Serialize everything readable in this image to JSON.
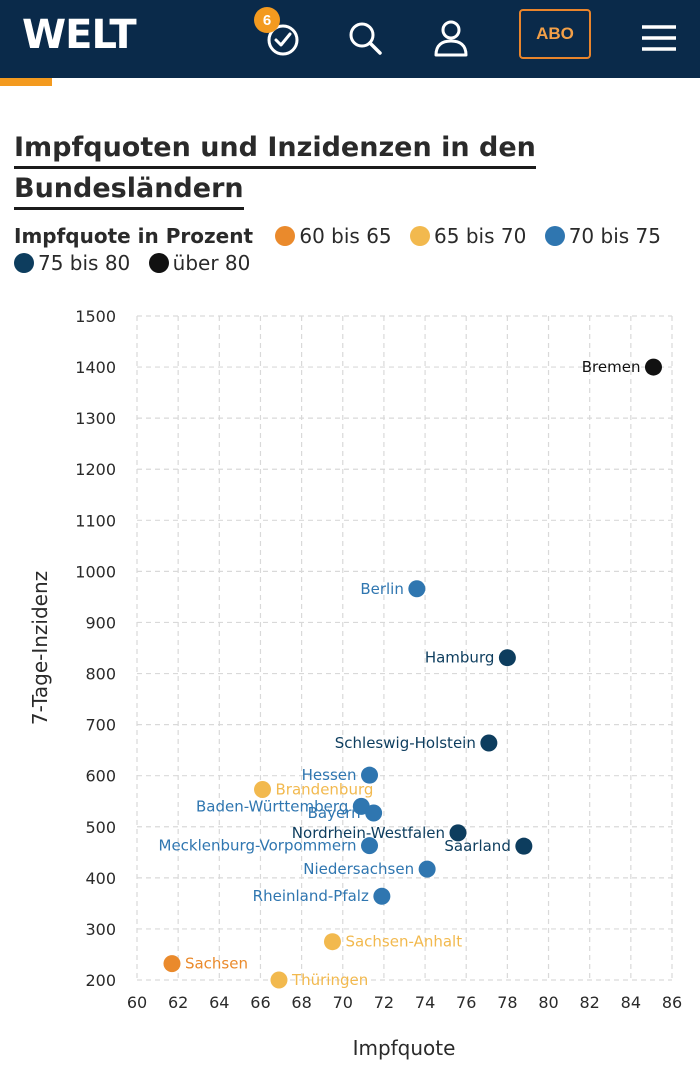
{
  "header": {
    "logo": "WELT",
    "notification_count": "6",
    "abo_label": "ABO",
    "icons": [
      "clock-icon",
      "search-icon",
      "user-icon",
      "menu-icon"
    ]
  },
  "colors": {
    "navy": "#0a2a4a",
    "accent": "#f39a1f",
    "orange": "#ea8a2c",
    "yellow": "#f2b94e",
    "blue": "#2f76b0",
    "darkblue": "#0d3d5e",
    "black": "#111111"
  },
  "chart_data": {
    "type": "scatter",
    "title_lines": [
      "Impfquoten und Inzidenzen in den",
      "Bundesländern"
    ],
    "legend_title": "Impfquote in Prozent",
    "legend": [
      {
        "label": "60 bis 65",
        "color": "#ea8a2c"
      },
      {
        "label": "65 bis 70",
        "color": "#f2b94e"
      },
      {
        "label": "70 bis 75",
        "color": "#2f76b0"
      },
      {
        "label": "75 bis 80",
        "color": "#0d3d5e"
      },
      {
        "label": "über 80",
        "color": "#111111"
      }
    ],
    "xlabel": "Impfquote",
    "ylabel": "7-Tage-Inzidenz",
    "xlim": [
      60,
      86
    ],
    "ylim": [
      200,
      1500
    ],
    "xticks": [
      60,
      62,
      64,
      66,
      68,
      70,
      72,
      74,
      76,
      78,
      80,
      82,
      84,
      86
    ],
    "yticks": [
      200,
      300,
      400,
      500,
      600,
      700,
      800,
      900,
      1000,
      1100,
      1200,
      1300,
      1400,
      1500
    ],
    "grid": true,
    "points": [
      {
        "name": "Bremen",
        "x": 85.1,
        "y": 1400,
        "group": 4,
        "side": "left"
      },
      {
        "name": "Berlin",
        "x": 73.6,
        "y": 966,
        "group": 2,
        "side": "left"
      },
      {
        "name": "Hamburg",
        "x": 78.0,
        "y": 831,
        "group": 3,
        "side": "left"
      },
      {
        "name": "Schleswig-Holstein",
        "x": 77.1,
        "y": 664,
        "group": 3,
        "side": "left"
      },
      {
        "name": "Hessen",
        "x": 71.3,
        "y": 601,
        "group": 2,
        "side": "left"
      },
      {
        "name": "Brandenburg",
        "x": 66.1,
        "y": 573,
        "group": 1,
        "side": "right"
      },
      {
        "name": "Baden-Württemberg",
        "x": 70.9,
        "y": 540,
        "group": 2,
        "side": "left"
      },
      {
        "name": "Bayern",
        "x": 71.5,
        "y": 527,
        "group": 2,
        "side": "left"
      },
      {
        "name": "Nordrhein-Westfalen",
        "x": 75.6,
        "y": 488,
        "group": 3,
        "side": "left"
      },
      {
        "name": "Mecklenburg-Vorpommern",
        "x": 71.3,
        "y": 463,
        "group": 2,
        "side": "left"
      },
      {
        "name": "Saarland",
        "x": 78.8,
        "y": 462,
        "group": 3,
        "side": "left"
      },
      {
        "name": "Niedersachsen",
        "x": 74.1,
        "y": 417,
        "group": 2,
        "side": "left"
      },
      {
        "name": "Rheinland-Pfalz",
        "x": 71.9,
        "y": 364,
        "group": 2,
        "side": "left"
      },
      {
        "name": "Sachsen-Anhalt",
        "x": 69.5,
        "y": 275,
        "group": 1,
        "side": "right"
      },
      {
        "name": "Sachsen",
        "x": 61.7,
        "y": 232,
        "group": 0,
        "side": "right"
      },
      {
        "name": "Thüringen",
        "x": 66.9,
        "y": 200,
        "group": 1,
        "side": "right"
      }
    ]
  }
}
